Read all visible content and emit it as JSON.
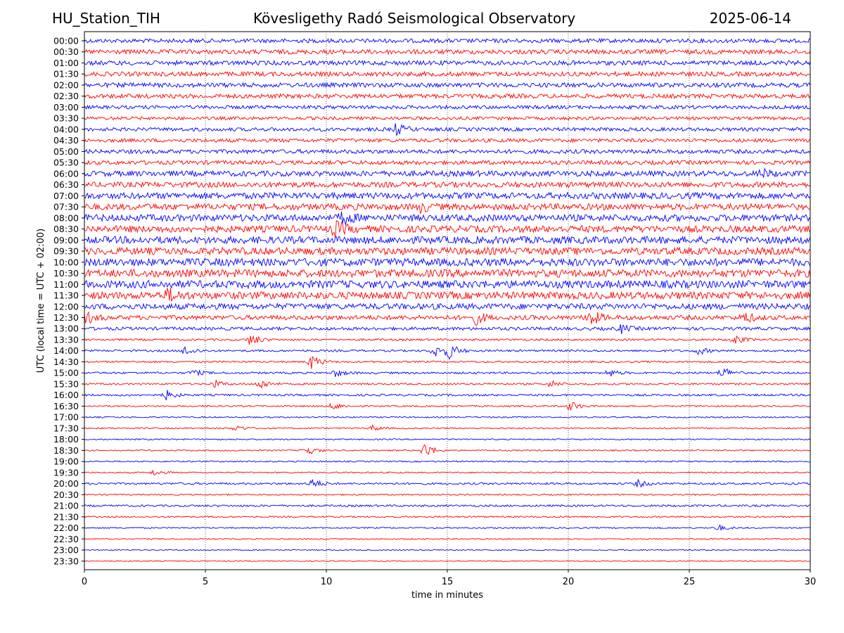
{
  "header": {
    "station": "HU_Station_TIH",
    "observatory": "Kövesligethy Radó Seismological Observatory",
    "date": "2025-06-14"
  },
  "chart_data": {
    "type": "line",
    "title": "Kövesligethy Radó Seismological Observatory",
    "xlabel": "time in minutes",
    "ylabel": "UTC (local time = UTC + 02:00)",
    "xlim": [
      0,
      30
    ],
    "x_ticks": [
      0,
      5,
      10,
      15,
      20,
      25,
      30
    ],
    "grid": "vertical dotted lines at x ticks",
    "colors": {
      "even_rows": "#0000ff",
      "odd_rows": "#ff0000"
    },
    "rows": [
      {
        "label": "00:00",
        "amp": 0.9,
        "events": []
      },
      {
        "label": "00:30",
        "amp": 1.0,
        "events": []
      },
      {
        "label": "01:00",
        "amp": 1.0,
        "events": []
      },
      {
        "label": "01:30",
        "amp": 1.0,
        "events": []
      },
      {
        "label": "02:00",
        "amp": 1.0,
        "events": []
      },
      {
        "label": "02:30",
        "amp": 0.95,
        "events": []
      },
      {
        "label": "03:00",
        "amp": 0.8,
        "events": []
      },
      {
        "label": "03:30",
        "amp": 0.7,
        "events": []
      },
      {
        "label": "04:00",
        "amp": 0.8,
        "events": [
          [
            12.9,
            2.5
          ]
        ]
      },
      {
        "label": "04:30",
        "amp": 0.8,
        "events": []
      },
      {
        "label": "05:00",
        "amp": 0.9,
        "events": []
      },
      {
        "label": "05:30",
        "amp": 0.9,
        "events": []
      },
      {
        "label": "06:00",
        "amp": 1.2,
        "events": [
          [
            28.0,
            1.6
          ]
        ]
      },
      {
        "label": "06:30",
        "amp": 1.2,
        "events": []
      },
      {
        "label": "07:00",
        "amp": 1.4,
        "events": []
      },
      {
        "label": "07:30",
        "amp": 1.4,
        "events": [
          [
            13.9,
            1.8
          ]
        ]
      },
      {
        "label": "08:00",
        "amp": 1.5,
        "events": [
          [
            10.7,
            2.6
          ]
        ]
      },
      {
        "label": "08:30",
        "amp": 1.5,
        "events": [
          [
            10.4,
            3.2
          ]
        ]
      },
      {
        "label": "09:00",
        "amp": 1.6,
        "events": []
      },
      {
        "label": "09:30",
        "amp": 1.6,
        "events": []
      },
      {
        "label": "10:00",
        "amp": 1.7,
        "events": []
      },
      {
        "label": "10:30",
        "amp": 1.7,
        "events": []
      },
      {
        "label": "11:00",
        "amp": 1.7,
        "events": []
      },
      {
        "label": "11:30",
        "amp": 1.6,
        "events": [
          [
            3.5,
            2.5
          ]
        ]
      },
      {
        "label": "12:00",
        "amp": 1.3,
        "events": []
      },
      {
        "label": "12:30",
        "amp": 1.0,
        "events": [
          [
            0.1,
            2.4
          ],
          [
            16.2,
            2.6
          ],
          [
            20.9,
            3.8
          ],
          [
            27.3,
            2.2
          ]
        ]
      },
      {
        "label": "13:00",
        "amp": 0.7,
        "events": [
          [
            22.2,
            1.8
          ]
        ]
      },
      {
        "label": "13:30",
        "amp": 0.45,
        "events": [
          [
            6.9,
            2.8
          ],
          [
            26.9,
            2.0
          ]
        ]
      },
      {
        "label": "14:00",
        "amp": 0.45,
        "events": [
          [
            4.2,
            2.2
          ],
          [
            14.5,
            2.8
          ],
          [
            15.1,
            3.2
          ],
          [
            25.4,
            1.6
          ]
        ]
      },
      {
        "label": "14:30",
        "amp": 0.4,
        "events": [
          [
            9.4,
            3.2
          ]
        ]
      },
      {
        "label": "15:00",
        "amp": 0.45,
        "events": [
          [
            4.5,
            1.4
          ],
          [
            10.4,
            1.6
          ],
          [
            21.7,
            1.6
          ],
          [
            26.4,
            2.6
          ]
        ]
      },
      {
        "label": "15:30",
        "amp": 0.4,
        "events": [
          [
            5.4,
            1.5
          ],
          [
            7.3,
            2.2
          ],
          [
            19.3,
            1.4
          ]
        ]
      },
      {
        "label": "16:00",
        "amp": 0.45,
        "events": [
          [
            3.4,
            2.0
          ]
        ]
      },
      {
        "label": "16:30",
        "amp": 0.35,
        "events": [
          [
            10.3,
            1.5
          ],
          [
            20.1,
            2.2
          ]
        ]
      },
      {
        "label": "17:00",
        "amp": 0.3,
        "events": []
      },
      {
        "label": "17:30",
        "amp": 0.3,
        "events": [
          [
            6.3,
            1.3
          ],
          [
            11.9,
            1.3
          ]
        ]
      },
      {
        "label": "18:00",
        "amp": 0.3,
        "events": []
      },
      {
        "label": "18:30",
        "amp": 0.3,
        "events": [
          [
            9.2,
            2.2
          ],
          [
            14.1,
            3.6
          ]
        ]
      },
      {
        "label": "19:00",
        "amp": 0.3,
        "events": []
      },
      {
        "label": "19:30",
        "amp": 0.3,
        "events": [
          [
            2.9,
            1.3
          ]
        ]
      },
      {
        "label": "20:00",
        "amp": 0.45,
        "events": [
          [
            9.4,
            2.2
          ],
          [
            22.9,
            1.6
          ]
        ]
      },
      {
        "label": "20:30",
        "amp": 0.3,
        "events": []
      },
      {
        "label": "21:00",
        "amp": 0.45,
        "events": []
      },
      {
        "label": "21:30",
        "amp": 0.35,
        "events": []
      },
      {
        "label": "22:00",
        "amp": 0.3,
        "events": [
          [
            26.2,
            1.3
          ]
        ]
      },
      {
        "label": "22:30",
        "amp": 0.25,
        "events": []
      },
      {
        "label": "23:00",
        "amp": 0.25,
        "events": []
      },
      {
        "label": "23:30",
        "amp": 0.2,
        "events": []
      }
    ]
  }
}
